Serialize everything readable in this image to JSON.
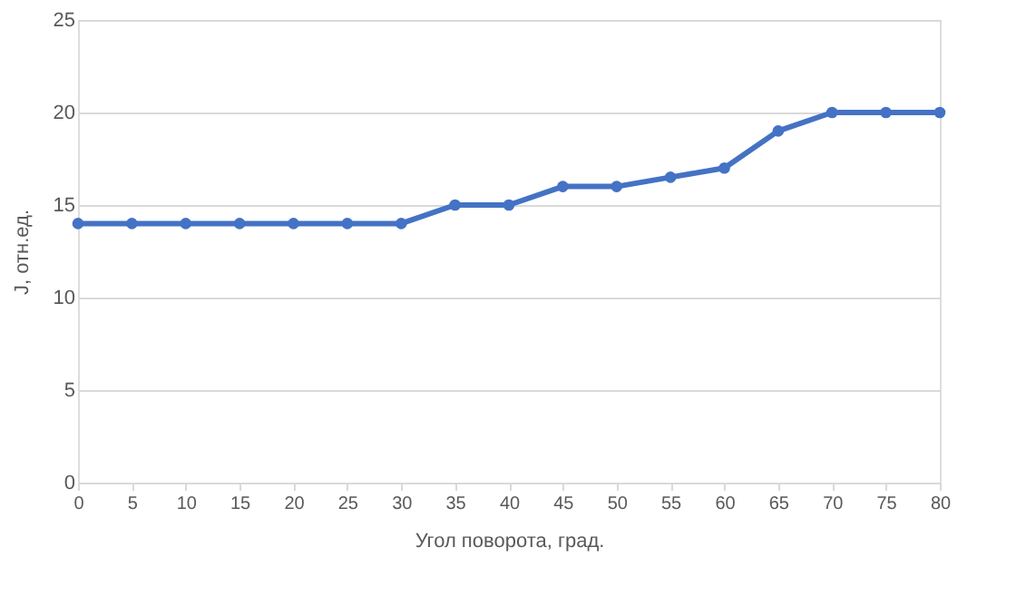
{
  "chart_data": {
    "type": "line",
    "xlabel": "Угол поворота, град.",
    "ylabel": "J, отн.ед.",
    "x": [
      0,
      5,
      10,
      15,
      20,
      25,
      30,
      35,
      40,
      45,
      50,
      55,
      60,
      65,
      70,
      75,
      80
    ],
    "series": [
      {
        "color": "#4472c4",
        "values": [
          14,
          14,
          14,
          14,
          14,
          14,
          14,
          15,
          15,
          16,
          16,
          16.5,
          17,
          19,
          20,
          20,
          20
        ]
      }
    ],
    "xlim": [
      0,
      80
    ],
    "xticks": [
      0,
      5,
      10,
      15,
      20,
      25,
      30,
      35,
      40,
      45,
      50,
      55,
      60,
      65,
      70,
      75,
      80
    ],
    "ylim": [
      0,
      25
    ],
    "yticks": [
      0,
      5,
      10,
      15,
      20,
      25
    ],
    "grid": "y",
    "marker": "circle",
    "line_style": "solid"
  }
}
